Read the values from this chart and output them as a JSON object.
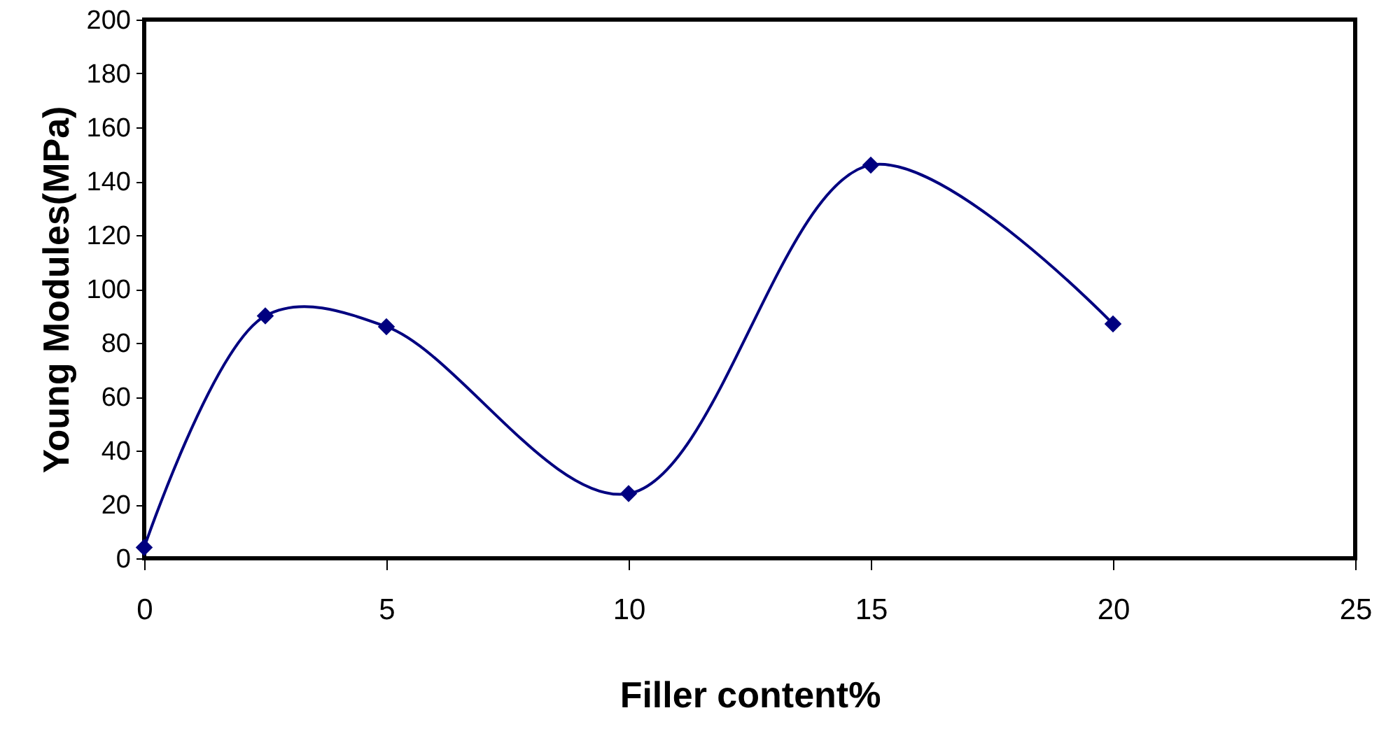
{
  "chart_data": {
    "type": "line",
    "xlabel": "Filler content%",
    "ylabel": "Young Modules(MPa)",
    "x": [
      0,
      2.5,
      5,
      10,
      15,
      20
    ],
    "series": [
      {
        "color": "#000080",
        "values": [
          4,
          90,
          86,
          24,
          146,
          87
        ]
      }
    ],
    "xlim": [
      0,
      25
    ],
    "xticks": [
      0,
      5,
      10,
      15,
      20,
      25
    ],
    "ylim": [
      0,
      200
    ],
    "yticks": [
      0,
      20,
      40,
      60,
      80,
      100,
      120,
      140,
      160,
      180,
      200
    ],
    "marker": "diamond",
    "line_style": "solid",
    "grid": false
  }
}
